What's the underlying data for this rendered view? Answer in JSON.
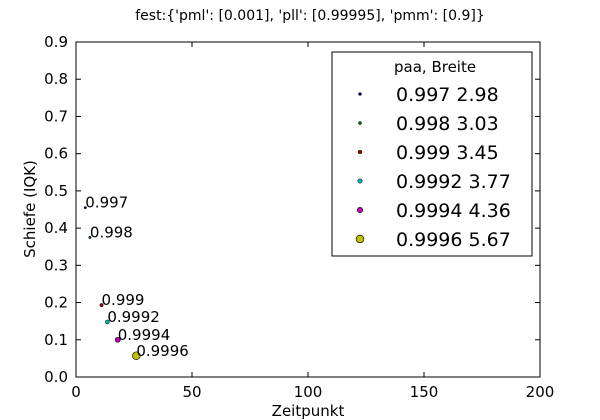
{
  "chart_data": {
    "type": "scatter",
    "title": "fest:{'pml': [0.001], 'pll': [0.99995], 'pmm': [0.9]}",
    "xlabel": "Zeitpunkt",
    "ylabel": "Schiefe (IQK)",
    "xlim": [
      0,
      200
    ],
    "ylim": [
      0.0,
      0.9
    ],
    "xticks": [
      0,
      50,
      100,
      150,
      200
    ],
    "yticks": [
      0.0,
      0.1,
      0.2,
      0.3,
      0.4,
      0.5,
      0.6,
      0.7,
      0.8,
      0.9
    ],
    "xtick_labels": [
      "0",
      "50",
      "100",
      "150",
      "200"
    ],
    "ytick_labels": [
      "0.0",
      "0.1",
      "0.2",
      "0.3",
      "0.4",
      "0.5",
      "0.6",
      "0.7",
      "0.8",
      "0.9"
    ],
    "grid": false,
    "legend_position": "top-right",
    "legend_header": "paa,    Breite",
    "series": [
      {
        "label": "0.997  2.98",
        "annotation": "0.997",
        "color": "#0000bf",
        "x": 4,
        "y": 0.455,
        "size": 2.98
      },
      {
        "label": "0.998  3.03",
        "annotation": "0.998",
        "color": "#007f00",
        "x": 6,
        "y": 0.375,
        "size": 3.03
      },
      {
        "label": "0.999  3.45",
        "annotation": "0.999",
        "color": "#bf0000",
        "x": 11,
        "y": 0.193,
        "size": 3.45
      },
      {
        "label": "0.9992  3.77",
        "annotation": "0.9992",
        "color": "#00bfbf",
        "x": 13.5,
        "y": 0.148,
        "size": 3.77
      },
      {
        "label": "0.9994  4.36",
        "annotation": "0.9994",
        "color": "#bf00bf",
        "x": 18,
        "y": 0.1,
        "size": 4.36
      },
      {
        "label": "0.9996  5.67",
        "annotation": "0.9996",
        "color": "#bfbf00",
        "x": 26,
        "y": 0.057,
        "size": 5.67
      }
    ]
  }
}
